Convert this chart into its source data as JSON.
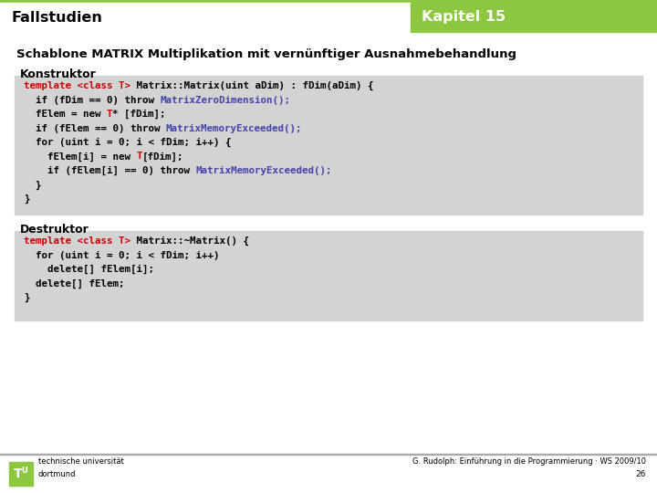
{
  "header_left": "Fallstudien",
  "header_right": "Kapitel 15",
  "header_bg_color": "#8DC63F",
  "header_text_color": "#FFFFFF",
  "header_left_color": "#000000",
  "title_line": "Schablone MATRIX Multiplikation mit vernünftiger Ausnahmebehandlung",
  "section1_label": "Konstruktor",
  "section2_label": "Destruktor",
  "code_bg_color": "#D3D3D3",
  "slide_bg_color": "#FFFFFF",
  "footer_text": "G. Rudolph: Einführung in die Programmierung · WS 2009/10",
  "footer_page": "26",
  "footer_uni1": "technische universität",
  "footer_uni2": "dortmund",
  "code1_lines": [
    {
      "segs": [
        [
          "template <class T>",
          "#CC0000"
        ],
        [
          " Matrix::Matrix(uint aDim) : fDim(aDim) {",
          "#000000"
        ]
      ]
    },
    {
      "segs": [
        [
          "  if (fDim == 0) throw ",
          "#000000"
        ],
        [
          "MatrixZeroDimension();",
          "#4444AA"
        ]
      ]
    },
    {
      "segs": [
        [
          "  fElem = new ",
          "#000000"
        ],
        [
          "T",
          "#CC0000"
        ],
        [
          "* [fDim];",
          "#000000"
        ]
      ]
    },
    {
      "segs": [
        [
          "  if (fElem == 0) throw ",
          "#000000"
        ],
        [
          "MatrixMemoryExceeded();",
          "#4444AA"
        ]
      ]
    },
    {
      "segs": [
        [
          "  for (uint i = 0; i < fDim; i++) {",
          "#000000"
        ]
      ]
    },
    {
      "segs": [
        [
          "    fElem[i] = new ",
          "#000000"
        ],
        [
          "T",
          "#CC0000"
        ],
        [
          "[fDim];",
          "#000000"
        ]
      ]
    },
    {
      "segs": [
        [
          "    if (fElem[i] == 0) throw ",
          "#000000"
        ],
        [
          "MatrixMemoryExceeded();",
          "#4444AA"
        ]
      ]
    },
    {
      "segs": [
        [
          "  }",
          "#000000"
        ]
      ]
    },
    {
      "segs": [
        [
          "}",
          "#000000"
        ]
      ]
    }
  ],
  "code2_lines": [
    {
      "segs": [
        [
          "template <class T>",
          "#CC0000"
        ],
        [
          " Matrix::~Matrix() {",
          "#000000"
        ]
      ]
    },
    {
      "segs": [
        [
          "  for (uint i = 0; i < fDim; i++)",
          "#000000"
        ]
      ]
    },
    {
      "segs": [
        [
          "    delete[] fElem[i];",
          "#000000"
        ]
      ]
    },
    {
      "segs": [
        [
          "  delete[] fElem;",
          "#000000"
        ]
      ]
    },
    {
      "segs": [
        [
          "}",
          "#000000"
        ]
      ]
    }
  ]
}
